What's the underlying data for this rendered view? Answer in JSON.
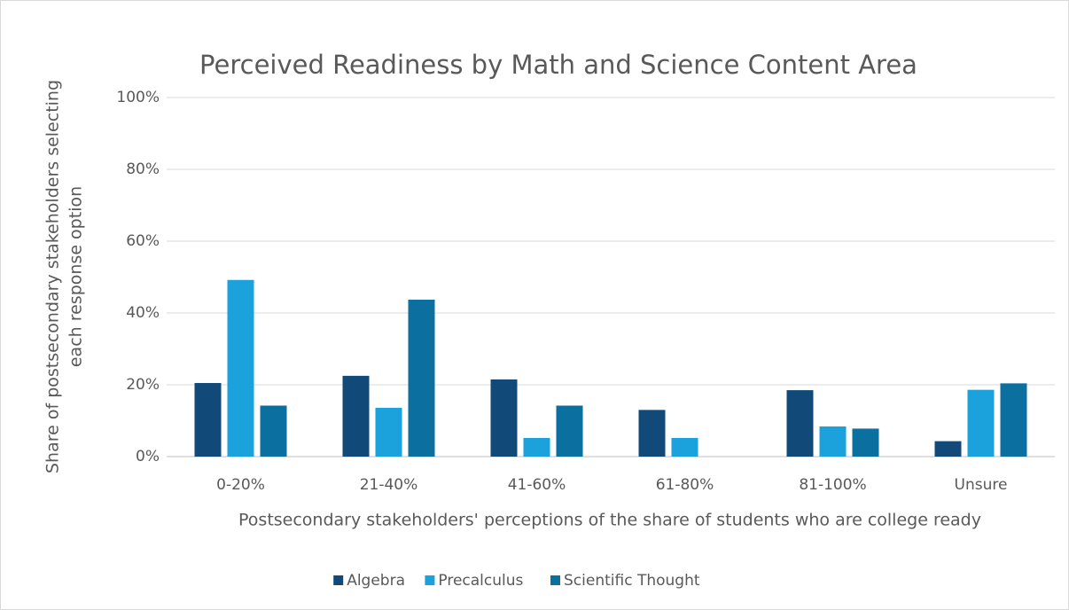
{
  "chart_data": {
    "type": "bar",
    "title": "Perceived Readiness by Math and Science Content Area",
    "x_label": "Postsecondary stakeholders' perceptions of the share of students who are college ready",
    "y_label": [
      "Share of postsecondary stakeholders selecting",
      "each response option"
    ],
    "categories": [
      "0-20%",
      "21-40%",
      "41-60%",
      "61-80%",
      "81-100%",
      "Unsure"
    ],
    "series": [
      {
        "name": "Algebra",
        "color": "#114a78",
        "values": [
          20.5,
          22.5,
          21.5,
          13,
          18.5,
          4.3
        ]
      },
      {
        "name": "Precalculus",
        "color": "#1ba1dc",
        "values": [
          49.2,
          13.6,
          5.2,
          5.2,
          8.4,
          18.6
        ]
      },
      {
        "name": "Scientific Thought",
        "color": "#0b6fa0",
        "values": [
          14.2,
          43.7,
          14.2,
          0,
          7.8,
          20.4
        ]
      }
    ],
    "ylim": [
      0,
      100
    ],
    "yticks": [
      {
        "value": 0,
        "label": "0%"
      },
      {
        "value": 20,
        "label": "20%"
      },
      {
        "value": 40,
        "label": "40%"
      },
      {
        "value": 60,
        "label": "60%"
      },
      {
        "value": 80,
        "label": "80%"
      },
      {
        "value": 100,
        "label": "100%"
      }
    ],
    "grid": true,
    "legend": "bottom"
  }
}
